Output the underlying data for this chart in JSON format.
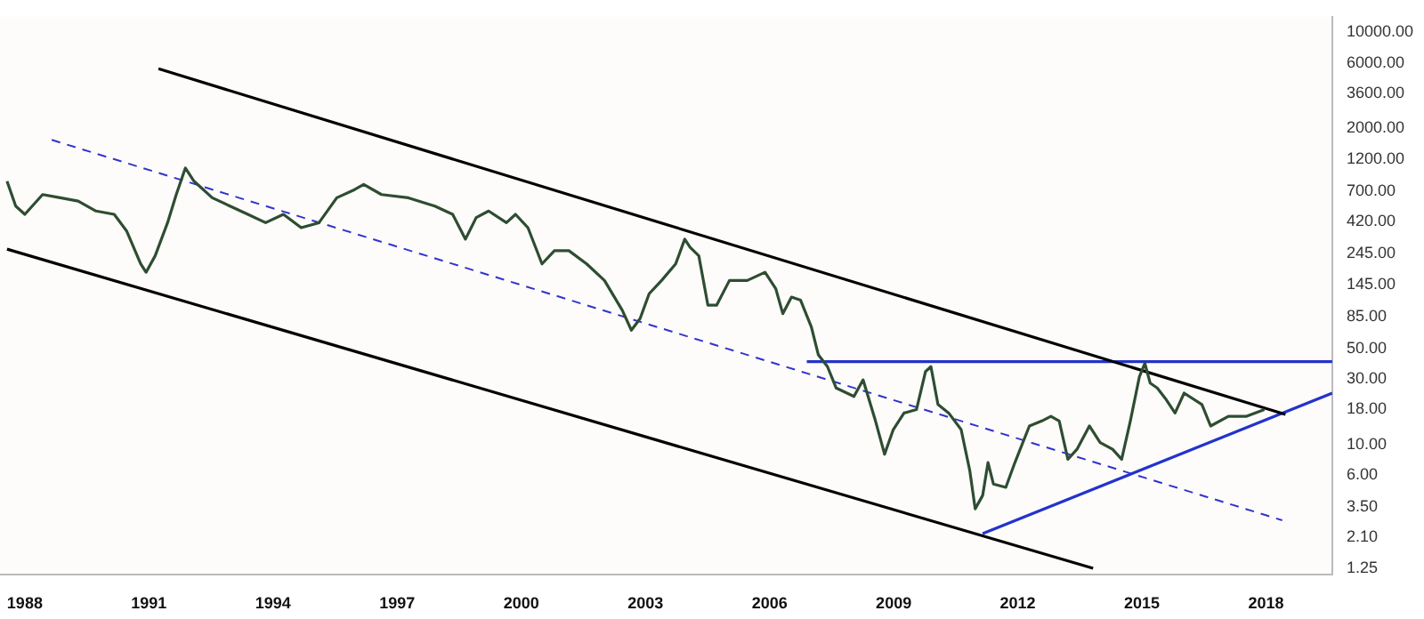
{
  "chart_data": {
    "type": "line",
    "log": "y",
    "grid": false,
    "legend": false,
    "marker": "none",
    "xlim": [
      1987.4,
      2019.6
    ],
    "xticks": [
      1988,
      1991,
      1994,
      1997,
      2000,
      2003,
      2006,
      2009,
      2012,
      2015,
      2018
    ],
    "ylim": [
      1.12,
      13000
    ],
    "yticks": [
      {
        "value": 10000,
        "label": "10000.00"
      },
      {
        "value": 6000,
        "label": "6000.00"
      },
      {
        "value": 3600,
        "label": "3600.00"
      },
      {
        "value": 2000,
        "label": "2000.00"
      },
      {
        "value": 1200,
        "label": "1200.00"
      },
      {
        "value": 700,
        "label": "700.00"
      },
      {
        "value": 420,
        "label": "420.00"
      },
      {
        "value": 245,
        "label": "245.00"
      },
      {
        "value": 145,
        "label": "145.00"
      },
      {
        "value": 85,
        "label": "85.00"
      },
      {
        "value": 50,
        "label": "50.00"
      },
      {
        "value": 30,
        "label": "30.00"
      },
      {
        "value": 18,
        "label": "18.00"
      },
      {
        "value": 10,
        "label": "10.00"
      },
      {
        "value": 6,
        "label": "6.00"
      },
      {
        "value": 3.5,
        "label": "3.50"
      },
      {
        "value": 2.1,
        "label": "2.10"
      },
      {
        "value": 1.25,
        "label": "1.25"
      }
    ],
    "series": [
      {
        "color": "#2e4d32",
        "line_style": "solid",
        "x": [
          1987.57,
          1987.78,
          1988.0,
          1988.43,
          1988.86,
          1989.29,
          1989.72,
          1990.16,
          1990.46,
          1990.8,
          1990.93,
          1991.15,
          1991.45,
          1991.66,
          1991.88,
          1992.09,
          1992.53,
          1992.96,
          1993.39,
          1993.82,
          1994.25,
          1994.68,
          1995.11,
          1995.54,
          1995.97,
          1996.19,
          1996.62,
          1997.27,
          1997.91,
          1998.34,
          1998.65,
          1998.91,
          1999.21,
          1999.64,
          1999.86,
          2000.16,
          2000.5,
          2000.8,
          2001.15,
          2001.58,
          2002.01,
          2002.44,
          2002.66,
          2002.87,
          2003.09,
          2003.39,
          2003.73,
          2003.95,
          2004.08,
          2004.29,
          2004.51,
          2004.72,
          2005.03,
          2005.46,
          2005.89,
          2006.15,
          2006.32,
          2006.53,
          2006.75,
          2007.01,
          2007.18,
          2007.4,
          2007.61,
          2008.04,
          2008.26,
          2008.56,
          2008.78,
          2008.99,
          2009.25,
          2009.55,
          2009.77,
          2009.9,
          2010.07,
          2010.33,
          2010.63,
          2010.84,
          2010.97,
          2011.15,
          2011.28,
          2011.41,
          2011.71,
          2011.93,
          2012.28,
          2012.58,
          2012.8,
          2013.0,
          2013.21,
          2013.43,
          2013.73,
          2013.99,
          2014.29,
          2014.51,
          2014.72,
          2014.94,
          2015.07,
          2015.2,
          2015.37,
          2015.59,
          2015.8,
          2016.02,
          2016.45,
          2016.66,
          2017.09,
          2017.53,
          2017.96
        ],
        "values": [
          824,
          543,
          473,
          659,
          624,
          590,
          500,
          473,
          358,
          206,
          179,
          236,
          411,
          659,
          1028,
          824,
          624,
          543,
          473,
          411,
          473,
          378,
          411,
          624,
          716,
          780,
          659,
          624,
          543,
          473,
          312,
          448,
          500,
          411,
          473,
          378,
          206,
          257,
          257,
          206,
          156,
          94.6,
          67.8,
          82.4,
          125,
          156,
          206,
          312,
          272,
          236,
          103,
          103,
          156,
          156,
          179,
          136,
          89.5,
          118,
          112,
          71.6,
          44.8,
          36.8,
          25.7,
          22.3,
          29.5,
          14.8,
          8.47,
          12.8,
          16.9,
          17.9,
          33.9,
          36.8,
          19.5,
          16.9,
          12.8,
          6.41,
          3.39,
          4.24,
          7.37,
          5.14,
          4.86,
          7.37,
          13.6,
          14.8,
          16,
          14.8,
          7.79,
          9.2,
          13.6,
          10.3,
          9.2,
          7.79,
          14.8,
          31.2,
          38.9,
          27.9,
          25.7,
          21.1,
          16.9,
          23.6,
          19.5,
          13.6,
          16,
          16,
          17.9
        ]
      },
      {
        "color": "#000000",
        "line_style": "solid",
        "x": [
          1991.23,
          2018.47
        ],
        "values": [
          5430,
          16.5
        ]
      },
      {
        "color": "#000000",
        "line_style": "solid",
        "x": [
          1987.57,
          2013.82
        ],
        "values": [
          264,
          1.25
        ]
      },
      {
        "color": "#3333cc",
        "line_style": "dashed",
        "x": [
          1988.65,
          2018.39
        ],
        "values": [
          1648,
          2.8
        ]
      },
      {
        "color": "#2233cc",
        "line_style": "solid",
        "x": [
          2006.9,
          2019.6
        ],
        "values": [
          40,
          40
        ]
      },
      {
        "color": "#2233cc",
        "line_style": "solid",
        "x": [
          2011.15,
          2019.6
        ],
        "values": [
          2.24,
          23.6
        ]
      }
    ]
  }
}
